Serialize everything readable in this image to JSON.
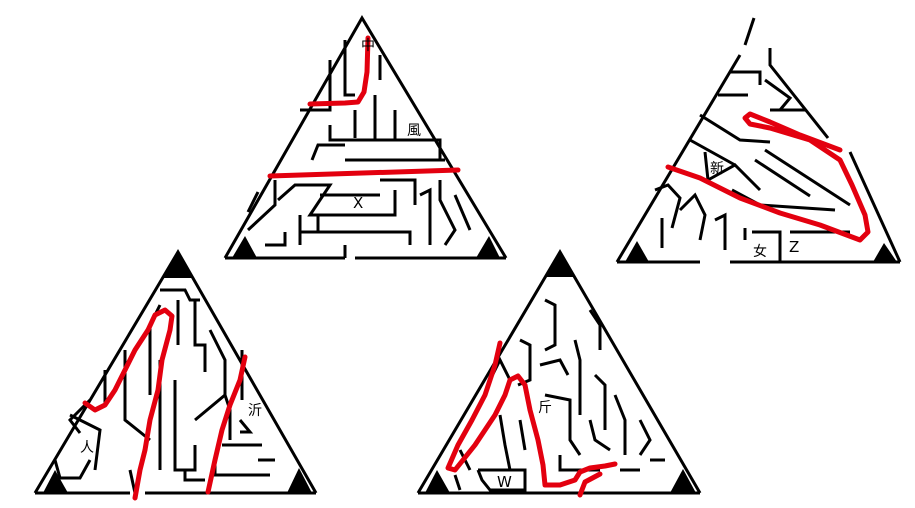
{
  "colors": {
    "wall": "#000000",
    "solution_path": "#e3000f",
    "background": "#ffffff"
  },
  "mazes": [
    {
      "id": "top-center",
      "labels": [
        "中",
        "風",
        "X"
      ]
    },
    {
      "id": "top-right",
      "labels": [
        "新",
        "女",
        "Z"
      ]
    },
    {
      "id": "bottom-left",
      "labels": [
        "人",
        "沂"
      ]
    },
    {
      "id": "bottom-center",
      "labels": [
        "斤",
        "W"
      ]
    }
  ]
}
